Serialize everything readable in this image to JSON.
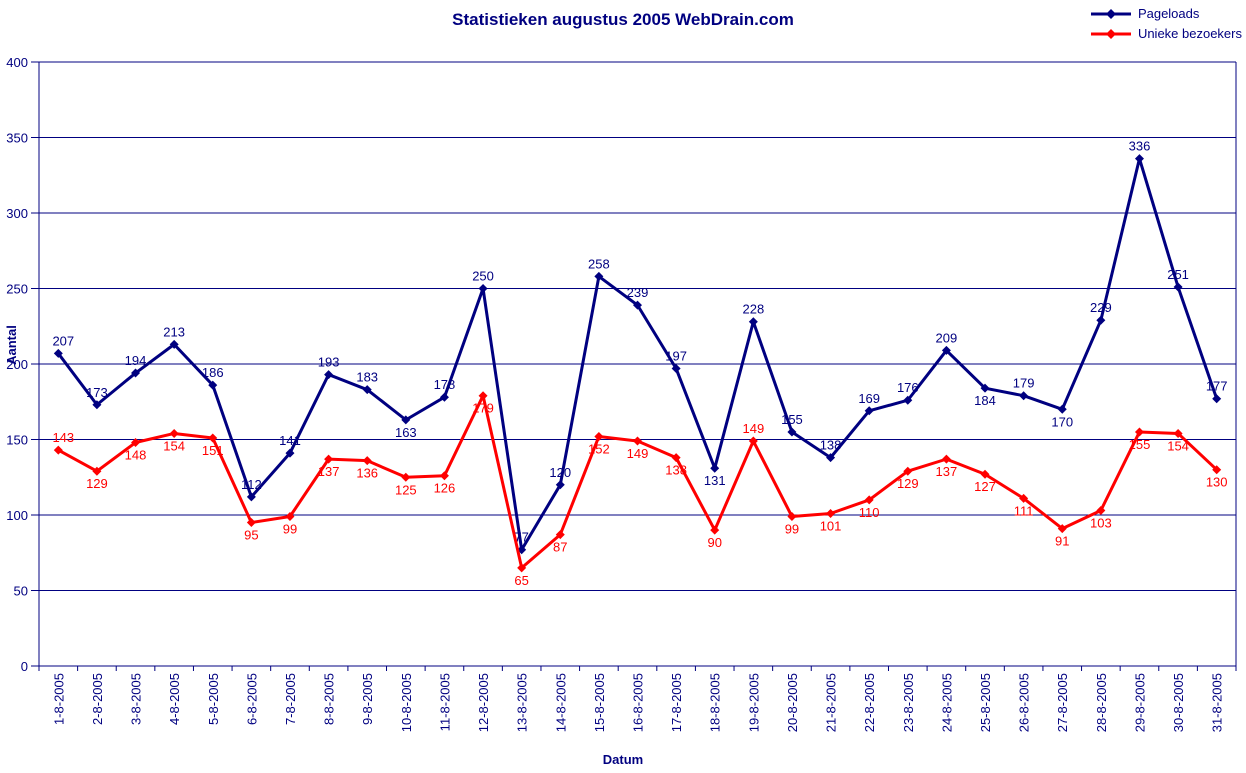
{
  "chart_data": {
    "type": "line",
    "title": "Statistieken augustus 2005 WebDrain.com",
    "xlabel": "Datum",
    "ylabel": "Aantal",
    "ylim": [
      0,
      400
    ],
    "ytick_interval": 50,
    "grid": true,
    "legend_position": "top-right",
    "colors": {
      "axis": "#000080",
      "grid": "#000080",
      "background": "#FFFFFF"
    },
    "categories": [
      "1-8-2005",
      "2-8-2005",
      "3-8-2005",
      "4-8-2005",
      "5-8-2005",
      "6-8-2005",
      "7-8-2005",
      "8-8-2005",
      "9-8-2005",
      "10-8-2005",
      "11-8-2005",
      "12-8-2005",
      "13-8-2005",
      "14-8-2005",
      "15-8-2005",
      "16-8-2005",
      "17-8-2005",
      "18-8-2005",
      "19-8-2005",
      "20-8-2005",
      "21-8-2005",
      "22-8-2005",
      "23-8-2005",
      "24-8-2005",
      "25-8-2005",
      "26-8-2005",
      "27-8-2005",
      "28-8-2005",
      "29-8-2005",
      "30-8-2005",
      "31-8-2005"
    ],
    "series": [
      {
        "name": "Pageloads",
        "color": "#000080",
        "values": [
          207,
          173,
          194,
          213,
          186,
          112,
          141,
          193,
          183,
          163,
          178,
          250,
          77,
          120,
          258,
          239,
          197,
          131,
          228,
          155,
          138,
          169,
          176,
          209,
          184,
          179,
          170,
          229,
          336,
          251,
          177
        ],
        "label_default": "above",
        "label_exception_indices": [
          9,
          17,
          24,
          26
        ]
      },
      {
        "name": "Unieke bezoekers",
        "color": "#FF0000",
        "values": [
          143,
          129,
          148,
          154,
          151,
          95,
          99,
          137,
          136,
          125,
          126,
          179,
          65,
          87,
          152,
          149,
          138,
          90,
          149,
          99,
          101,
          110,
          129,
          137,
          127,
          111,
          91,
          103,
          155,
          154,
          130
        ],
        "label_default": "below",
        "label_exception_indices": [
          0,
          18
        ]
      }
    ]
  }
}
